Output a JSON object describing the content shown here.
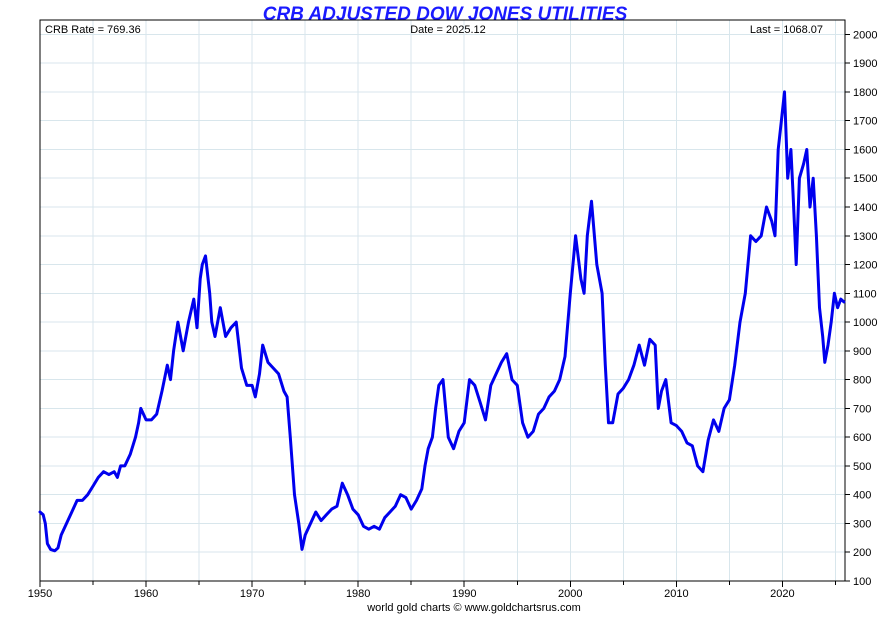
{
  "chart_data": {
    "type": "line",
    "title": "CRB ADJUSTED DOW JONES UTILITIES",
    "info": {
      "left": "CRB Rate = 769.36",
      "center": "Date = 2025.12",
      "right": "Last = 1068.07"
    },
    "credit": "world gold charts © www.goldchartsrus.com",
    "colors": {
      "title": "#1a1aff",
      "series": "#0000ee",
      "grid": "#d8e6ec"
    },
    "xlim": [
      1950,
      2025.9
    ],
    "ylim": [
      100,
      2050
    ],
    "x_ticks": [
      1950,
      1960,
      1970,
      1980,
      1990,
      2000,
      2010,
      2020
    ],
    "x_tick_labels": [
      "1950",
      "1960",
      "1970",
      "1980",
      "1990",
      "2000",
      "2010",
      "2020"
    ],
    "y_ticks": [
      100,
      200,
      300,
      400,
      500,
      600,
      700,
      800,
      900,
      1000,
      1100,
      1200,
      1300,
      1400,
      1500,
      1600,
      1700,
      1800,
      1900,
      2000
    ],
    "y_tick_labels": [
      "100",
      "200",
      "300",
      "400",
      "500",
      "600",
      "700",
      "800",
      "900",
      "1000",
      "1100",
      "1200",
      "1300",
      "1400",
      "1500",
      "1600",
      "1700",
      "1800",
      "1900",
      "2000"
    ],
    "grid": true,
    "series": [
      {
        "name": "CRB Adjusted Dow Jones Utilities",
        "x": [
          1950.0,
          1950.3,
          1950.5,
          1950.7,
          1951.0,
          1951.4,
          1951.7,
          1952.0,
          1952.5,
          1953.0,
          1953.5,
          1954.0,
          1954.5,
          1955.0,
          1955.5,
          1956.0,
          1956.5,
          1957.0,
          1957.3,
          1957.6,
          1958.0,
          1958.5,
          1959.0,
          1959.3,
          1959.5,
          1960.0,
          1960.5,
          1961.0,
          1961.5,
          1962.0,
          1962.3,
          1962.6,
          1963.0,
          1963.5,
          1964.0,
          1964.5,
          1964.8,
          1965.1,
          1965.3,
          1965.6,
          1966.0,
          1966.2,
          1966.5,
          1967.0,
          1967.5,
          1968.0,
          1968.5,
          1969.0,
          1969.5,
          1970.0,
          1970.3,
          1970.7,
          1971.0,
          1971.5,
          1972.0,
          1972.5,
          1973.0,
          1973.3,
          1973.6,
          1974.0,
          1974.4,
          1974.7,
          1975.0,
          1975.5,
          1976.0,
          1976.5,
          1977.0,
          1977.5,
          1978.0,
          1978.5,
          1979.0,
          1979.5,
          1980.0,
          1980.5,
          1981.0,
          1981.5,
          1982.0,
          1982.5,
          1983.0,
          1983.5,
          1984.0,
          1984.5,
          1985.0,
          1985.5,
          1986.0,
          1986.3,
          1986.6,
          1987.0,
          1987.3,
          1987.6,
          1988.0,
          1988.5,
          1989.0,
          1989.5,
          1990.0,
          1990.5,
          1991.0,
          1991.5,
          1992.0,
          1992.5,
          1993.0,
          1993.5,
          1994.0,
          1994.5,
          1995.0,
          1995.5,
          1996.0,
          1996.5,
          1997.0,
          1997.5,
          1998.0,
          1998.5,
          1999.0,
          1999.5,
          2000.0,
          2000.5,
          2001.0,
          2001.3,
          2001.6,
          2002.0,
          2002.5,
          2003.0,
          2003.3,
          2003.6,
          2004.0,
          2004.5,
          2005.0,
          2005.5,
          2006.0,
          2006.5,
          2007.0,
          2007.5,
          2008.0,
          2008.3,
          2008.6,
          2009.0,
          2009.5,
          2010.0,
          2010.5,
          2011.0,
          2011.5,
          2012.0,
          2012.5,
          2013.0,
          2013.5,
          2014.0,
          2014.5,
          2015.0,
          2015.5,
          2016.0,
          2016.5,
          2017.0,
          2017.5,
          2018.0,
          2018.5,
          2019.0,
          2019.3,
          2019.6,
          2019.9,
          2020.2,
          2020.5,
          2020.8,
          2021.0,
          2021.3,
          2021.6,
          2022.0,
          2022.3,
          2022.6,
          2022.9,
          2023.2,
          2023.5,
          2023.8,
          2024.0,
          2024.3,
          2024.6,
          2024.9,
          2025.2,
          2025.5,
          2025.8
        ],
        "y": [
          340,
          330,
          300,
          230,
          210,
          205,
          215,
          260,
          300,
          340,
          380,
          380,
          400,
          430,
          460,
          480,
          470,
          480,
          460,
          500,
          500,
          540,
          600,
          650,
          700,
          660,
          660,
          680,
          760,
          850,
          800,
          900,
          1000,
          900,
          1000,
          1080,
          980,
          1150,
          1200,
          1230,
          1100,
          1000,
          950,
          1050,
          950,
          980,
          1000,
          840,
          780,
          780,
          740,
          820,
          920,
          860,
          840,
          820,
          760,
          740,
          600,
          400,
          300,
          210,
          260,
          300,
          340,
          310,
          330,
          350,
          360,
          440,
          400,
          350,
          330,
          290,
          280,
          290,
          280,
          320,
          340,
          360,
          400,
          390,
          350,
          380,
          420,
          500,
          560,
          600,
          700,
          780,
          800,
          600,
          560,
          620,
          650,
          800,
          780,
          720,
          660,
          780,
          820,
          860,
          890,
          800,
          780,
          650,
          600,
          620,
          680,
          700,
          740,
          760,
          800,
          880,
          1100,
          1300,
          1150,
          1100,
          1300,
          1420,
          1200,
          1100,
          850,
          650,
          650,
          750,
          770,
          800,
          850,
          920,
          850,
          940,
          920,
          700,
          760,
          800,
          650,
          640,
          620,
          580,
          570,
          500,
          480,
          590,
          660,
          620,
          700,
          730,
          850,
          1000,
          1100,
          1300,
          1280,
          1300,
          1400,
          1350,
          1300,
          1600,
          1700,
          1800,
          1500,
          1600,
          1450,
          1200,
          1500,
          1550,
          1600,
          1400,
          1500,
          1300,
          1050,
          950,
          860,
          920,
          1000,
          1100,
          1050,
          1080,
          1070
        ]
      }
    ]
  }
}
